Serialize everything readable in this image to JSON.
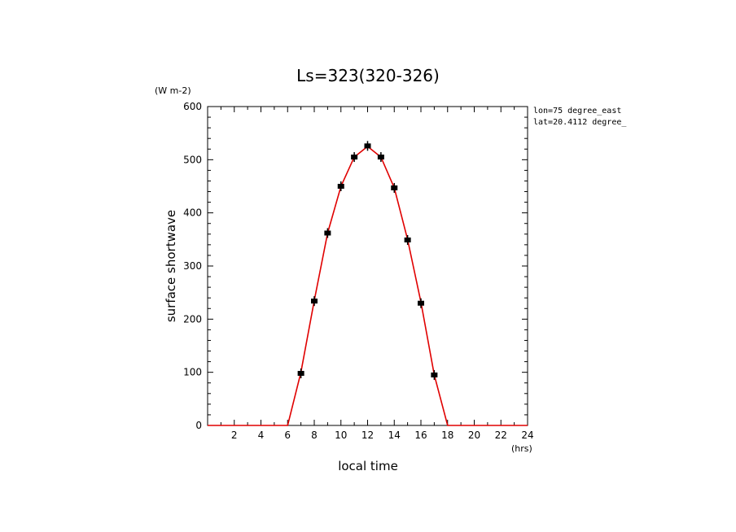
{
  "chart_data": {
    "type": "line",
    "title": "Ls=323(320-326)",
    "xlabel": "local time",
    "ylabel": "surface shortwave",
    "x_unit": "(hrs)",
    "y_unit": "(W m-2)",
    "xlim": [
      0,
      24
    ],
    "ylim": [
      0,
      600
    ],
    "x_ticks": [
      2,
      4,
      6,
      8,
      10,
      12,
      14,
      16,
      18,
      20,
      22,
      24
    ],
    "y_ticks": [
      0,
      100,
      200,
      300,
      400,
      500,
      600
    ],
    "annotations": [
      "lon=75 degree_east",
      "lat=20.4112 degree_"
    ],
    "grid": false,
    "colors": {
      "line": "#e00000",
      "markers": "#000000",
      "axes": "#000000"
    },
    "series": [
      {
        "kind": "line",
        "x": [
          0,
          1,
          2,
          3,
          4,
          5,
          6,
          7,
          8,
          9,
          10,
          11,
          12,
          13,
          14,
          15,
          16,
          17,
          18,
          19,
          20,
          21,
          22,
          23,
          24
        ],
        "y": [
          0,
          0,
          0,
          0,
          0,
          0,
          0,
          100,
          235,
          362,
          450,
          505,
          525,
          505,
          447,
          350,
          232,
          95,
          0,
          0,
          0,
          0,
          0,
          0,
          0
        ]
      },
      {
        "kind": "markers",
        "x": [
          7,
          8,
          9,
          10,
          11,
          12,
          13,
          14,
          15,
          16,
          17
        ],
        "y": [
          98,
          234,
          362,
          450,
          505,
          526,
          505,
          447,
          349,
          230,
          95
        ]
      }
    ]
  }
}
